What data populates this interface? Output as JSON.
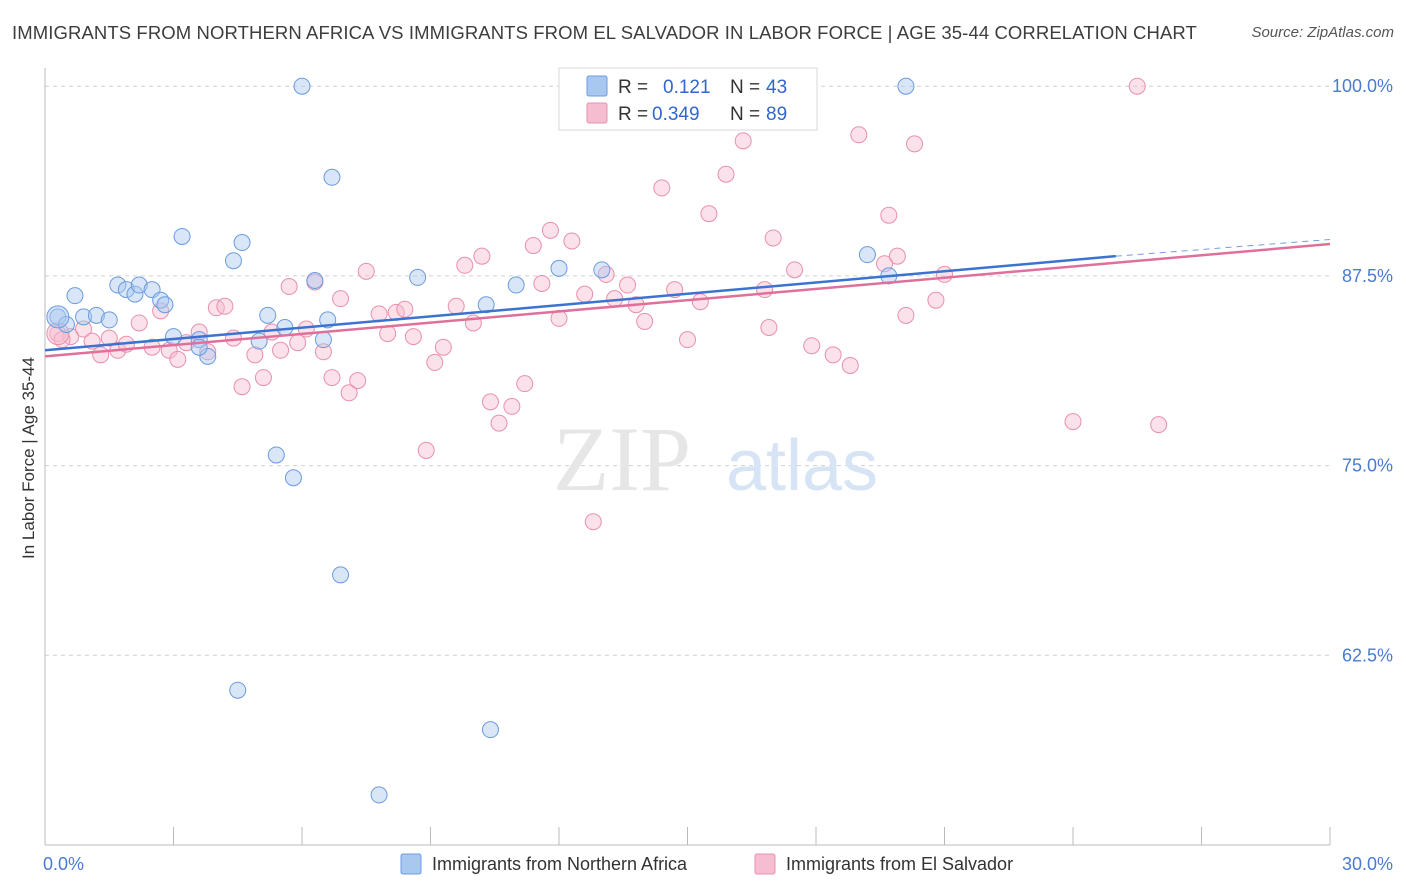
{
  "header": {
    "title": "IMMIGRANTS FROM NORTHERN AFRICA VS IMMIGRANTS FROM EL SALVADOR IN LABOR FORCE | AGE 35-44 CORRELATION CHART",
    "source": "Source: ZipAtlas.com"
  },
  "watermark": {
    "zip": "ZIP",
    "atlas": "atlas"
  },
  "colors": {
    "blue_fill": "#a9c8f0",
    "blue_stroke": "#6a9be0",
    "blue_line": "#3a74d0",
    "pink_fill": "#f6bcd0",
    "pink_stroke": "#e890ae",
    "pink_line": "#e0709a",
    "tick_text": "#4a7bd0",
    "grid": "#d0d0d0"
  },
  "legend": {
    "r_label": "R =",
    "n_label": "N =",
    "rows": [
      {
        "r": "0.121",
        "n": "43"
      },
      {
        "r": "0.349",
        "n": "89"
      }
    ]
  },
  "chart_data": {
    "type": "scatter",
    "title": "IMMIGRANTS FROM NORTHERN AFRICA VS IMMIGRANTS FROM EL SALVADOR IN LABOR FORCE | AGE 35-44 CORRELATION CHART",
    "xlabel": "",
    "ylabel": "In Labor Force | Age 35-44",
    "xlim": [
      0,
      30
    ],
    "ylim": [
      50,
      101.2
    ],
    "x_tick_labels": [
      "0.0%",
      "30.0%"
    ],
    "y_ticks": [
      62.5,
      75.0,
      87.5,
      100.0
    ],
    "y_tick_labels": [
      "62.5%",
      "75.0%",
      "87.5%",
      "100.0%"
    ],
    "grid": true,
    "legend_position": "top-center",
    "series": [
      {
        "name": "Immigrants from Northern Africa",
        "color": "#a9c8f0",
        "trend": {
          "x": [
            0,
            25.0
          ],
          "y": [
            82.6,
            88.8
          ]
        },
        "trend_dashed_to": {
          "x": [
            25.0,
            30
          ],
          "y": [
            88.8,
            89.9
          ]
        },
        "points": [
          [
            0.3,
            84.8
          ],
          [
            0.5,
            84.3
          ],
          [
            0.7,
            86.2
          ],
          [
            0.9,
            84.8
          ],
          [
            1.2,
            84.9
          ],
          [
            1.7,
            86.9
          ],
          [
            1.9,
            86.6
          ],
          [
            2.1,
            86.3
          ],
          [
            2.2,
            86.9
          ],
          [
            2.5,
            86.6
          ],
          [
            2.7,
            85.9
          ],
          [
            2.8,
            85.6
          ],
          [
            3.0,
            83.5
          ],
          [
            3.2,
            90.1
          ],
          [
            3.6,
            83.3
          ],
          [
            3.8,
            82.2
          ],
          [
            4.4,
            88.5
          ],
          [
            4.6,
            89.7
          ],
          [
            5.0,
            83.2
          ],
          [
            5.2,
            84.9
          ],
          [
            5.4,
            75.7
          ],
          [
            5.6,
            84.1
          ],
          [
            5.8,
            74.2
          ],
          [
            6.0,
            100.0
          ],
          [
            6.3,
            87.2
          ],
          [
            6.5,
            83.3
          ],
          [
            6.6,
            84.6
          ],
          [
            6.7,
            94.0
          ],
          [
            6.9,
            67.8
          ],
          [
            7.8,
            53.3
          ],
          [
            8.7,
            87.4
          ],
          [
            10.3,
            85.6
          ],
          [
            10.4,
            57.6
          ],
          [
            11.0,
            86.9
          ],
          [
            12.0,
            88.0
          ],
          [
            13.0,
            87.9
          ],
          [
            14.4,
            100.0
          ],
          [
            19.2,
            88.9
          ],
          [
            19.7,
            87.5
          ],
          [
            20.1,
            100.0
          ],
          [
            4.5,
            60.2
          ],
          [
            3.6,
            82.8
          ],
          [
            1.5,
            84.6
          ]
        ]
      },
      {
        "name": "Immigrants from El Salvador",
        "color": "#f6bcd0",
        "trend": {
          "x": [
            0,
            30
          ],
          "y": [
            82.2,
            89.6
          ]
        },
        "points": [
          [
            0.3,
            83.7
          ],
          [
            0.6,
            83.5
          ],
          [
            0.9,
            84.0
          ],
          [
            1.1,
            83.2
          ],
          [
            1.3,
            82.3
          ],
          [
            1.5,
            83.4
          ],
          [
            1.7,
            82.6
          ],
          [
            1.9,
            83.0
          ],
          [
            2.2,
            84.4
          ],
          [
            2.5,
            82.8
          ],
          [
            2.7,
            85.2
          ],
          [
            2.9,
            82.6
          ],
          [
            3.1,
            82.0
          ],
          [
            3.3,
            83.1
          ],
          [
            3.6,
            83.8
          ],
          [
            3.8,
            82.5
          ],
          [
            4.0,
            85.4
          ],
          [
            4.2,
            85.5
          ],
          [
            4.4,
            83.4
          ],
          [
            4.6,
            80.2
          ],
          [
            4.9,
            82.3
          ],
          [
            5.1,
            80.8
          ],
          [
            5.3,
            83.8
          ],
          [
            5.5,
            82.6
          ],
          [
            5.7,
            86.8
          ],
          [
            5.9,
            83.1
          ],
          [
            6.1,
            84.0
          ],
          [
            6.3,
            87.1
          ],
          [
            6.5,
            82.5
          ],
          [
            6.7,
            80.8
          ],
          [
            6.9,
            86.0
          ],
          [
            7.1,
            79.8
          ],
          [
            7.3,
            80.6
          ],
          [
            7.5,
            87.8
          ],
          [
            7.8,
            85.0
          ],
          [
            8.0,
            83.7
          ],
          [
            8.2,
            85.1
          ],
          [
            8.4,
            85.3
          ],
          [
            8.6,
            83.5
          ],
          [
            8.9,
            76.0
          ],
          [
            9.1,
            81.8
          ],
          [
            9.3,
            82.8
          ],
          [
            9.6,
            85.5
          ],
          [
            9.8,
            88.2
          ],
          [
            10.0,
            84.4
          ],
          [
            10.2,
            88.8
          ],
          [
            10.4,
            79.2
          ],
          [
            10.6,
            77.8
          ],
          [
            10.9,
            78.9
          ],
          [
            11.2,
            80.4
          ],
          [
            11.4,
            89.5
          ],
          [
            11.6,
            87.0
          ],
          [
            11.8,
            90.5
          ],
          [
            12.0,
            84.7
          ],
          [
            12.3,
            89.8
          ],
          [
            12.6,
            86.3
          ],
          [
            12.8,
            71.3
          ],
          [
            13.1,
            87.6
          ],
          [
            13.3,
            86.0
          ],
          [
            13.6,
            86.9
          ],
          [
            13.8,
            85.6
          ],
          [
            14.0,
            84.5
          ],
          [
            14.4,
            93.3
          ],
          [
            14.7,
            86.6
          ],
          [
            15.0,
            83.3
          ],
          [
            15.3,
            85.8
          ],
          [
            15.5,
            91.6
          ],
          [
            15.9,
            94.2
          ],
          [
            16.3,
            96.4
          ],
          [
            16.8,
            86.6
          ],
          [
            16.9,
            84.1
          ],
          [
            17.0,
            90.0
          ],
          [
            17.5,
            87.9
          ],
          [
            17.9,
            82.9
          ],
          [
            18.4,
            82.3
          ],
          [
            18.8,
            81.6
          ],
          [
            19.0,
            96.8
          ],
          [
            19.6,
            88.3
          ],
          [
            19.7,
            91.5
          ],
          [
            19.9,
            88.8
          ],
          [
            20.1,
            84.9
          ],
          [
            20.8,
            85.9
          ],
          [
            21.0,
            87.6
          ],
          [
            24.0,
            77.9
          ],
          [
            25.5,
            100.0
          ],
          [
            26.0,
            77.7
          ],
          [
            16.0,
            97.9
          ],
          [
            20.3,
            96.2
          ],
          [
            0.4,
            83.3
          ]
        ]
      }
    ]
  },
  "bottom_legend": {
    "items": [
      "Immigrants from Northern Africa",
      "Immigrants from El Salvador"
    ]
  }
}
